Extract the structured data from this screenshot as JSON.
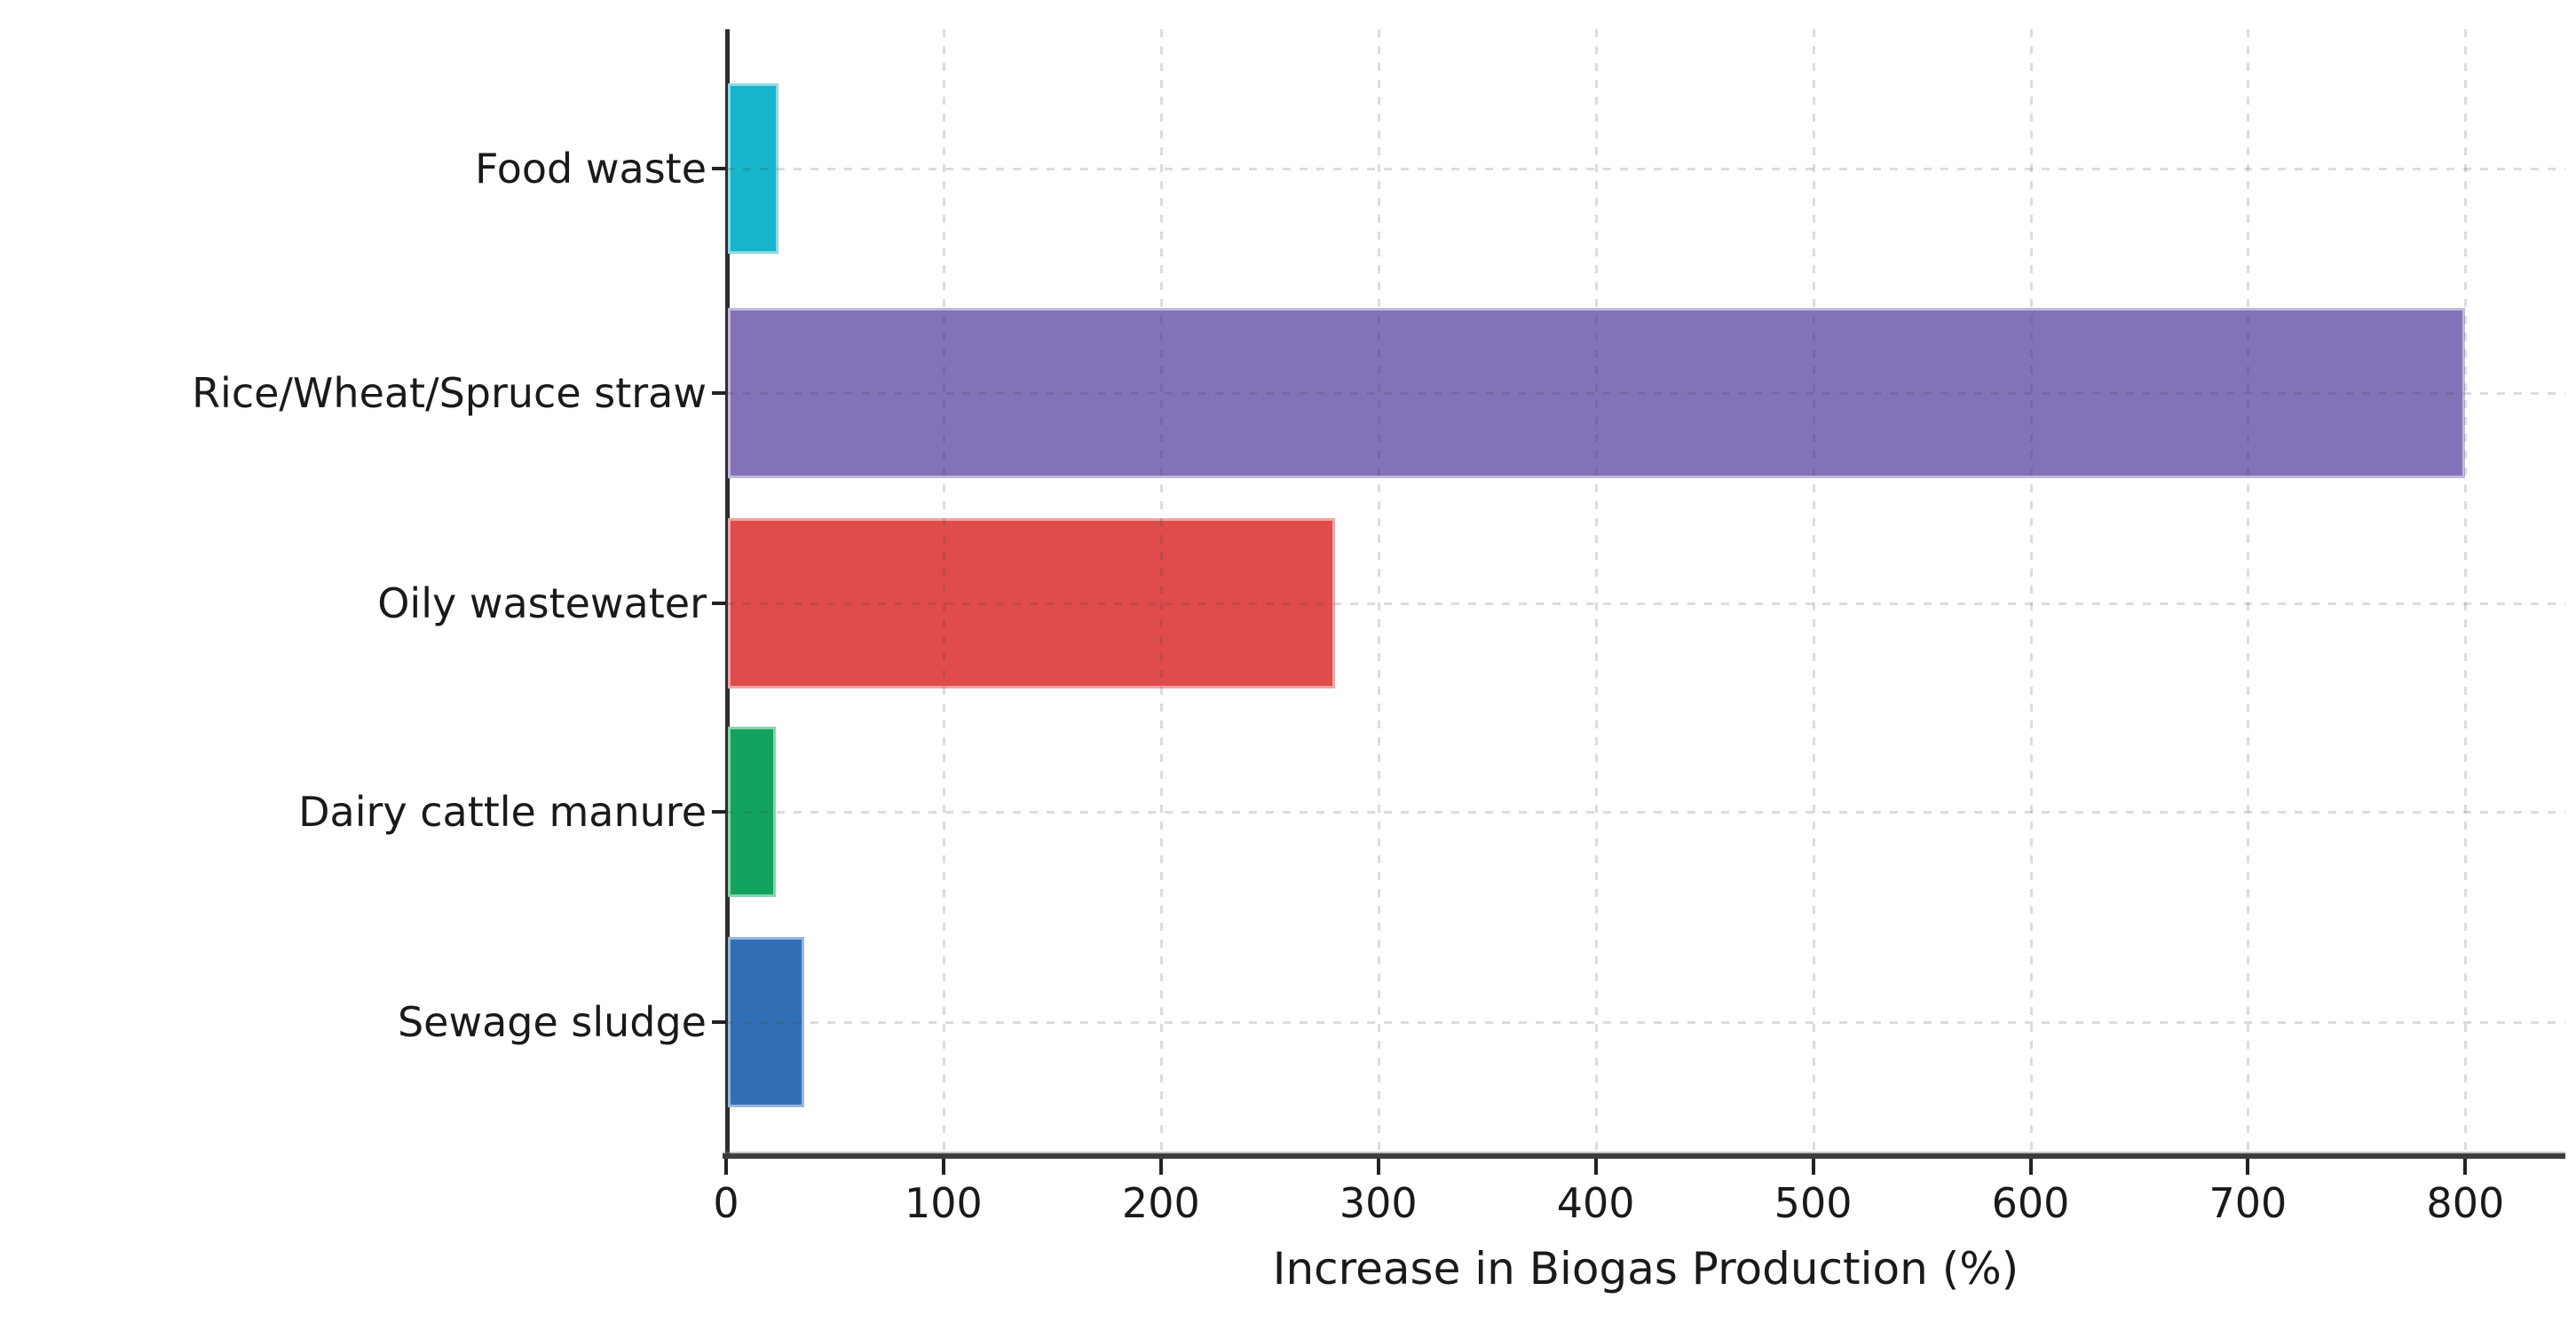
{
  "chart_data": {
    "type": "bar",
    "orientation": "horizontal",
    "title": "",
    "xlabel": "Increase in Biogas Production (%)",
    "ylabel": "",
    "categories": [
      "Food waste",
      "Rice/Wheat/Spruce straw",
      "Oily wastewater",
      "Dairy cattle manure",
      "Sewage sludge"
    ],
    "values": [
      24,
      800,
      280,
      23,
      36
    ],
    "bar_colors": [
      "#17b4cb",
      "#8372b8",
      "#e04b4c",
      "#12a45f",
      "#316fb4"
    ],
    "xticks": [
      0,
      100,
      200,
      300,
      400,
      500,
      600,
      700,
      800
    ],
    "xlim": [
      0,
      846
    ],
    "grid": "dashed-both-axes",
    "legend": "none",
    "category_order": "top-to-bottom"
  }
}
